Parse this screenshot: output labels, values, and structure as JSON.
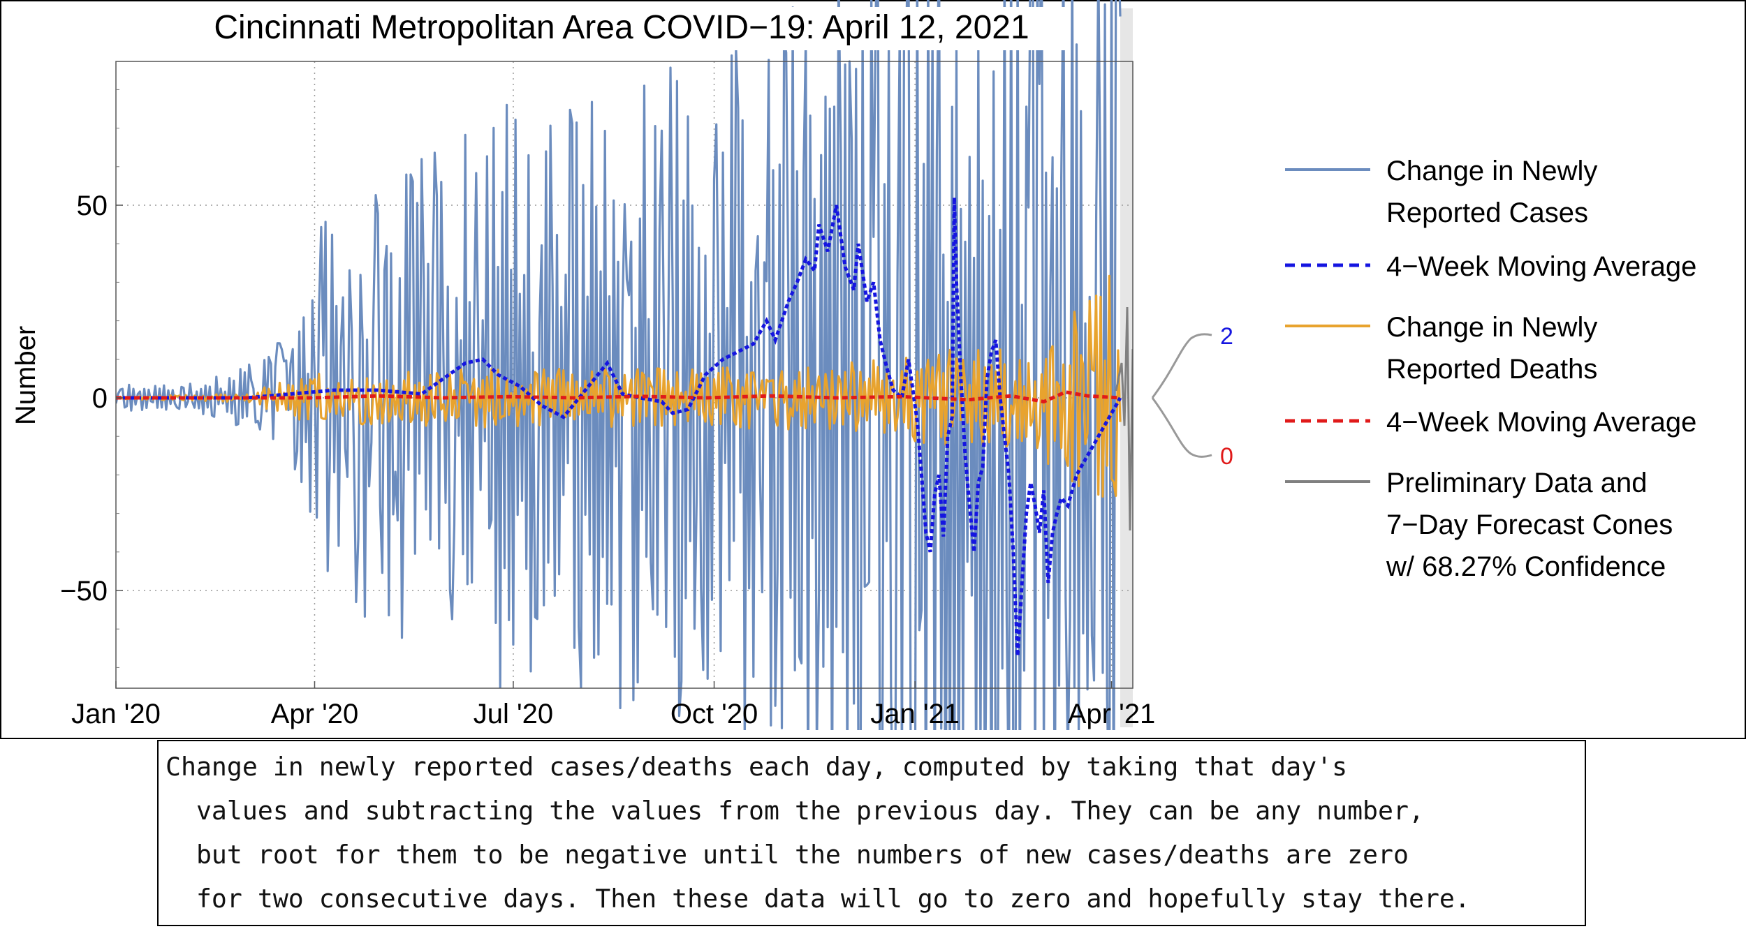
{
  "chart_data": {
    "type": "line",
    "title": "Cincinnati Metropolitan Area COVID−19: April 12, 2021",
    "xlabel": "",
    "ylabel": "Number",
    "x_range": [
      "2020-01-01",
      "2021-04-12"
    ],
    "ylim": [
      -75,
      88
    ],
    "y_ticks": [
      {
        "value": 50,
        "label": "50"
      },
      {
        "value": 0,
        "label": "0"
      },
      {
        "value": -50,
        "label": "−50"
      }
    ],
    "x_ticks": [
      {
        "day": 0,
        "label": "Jan '20"
      },
      {
        "day": 91,
        "label": "Apr '20"
      },
      {
        "day": 182,
        "label": "Jul '20"
      },
      {
        "day": 274,
        "label": "Oct '20"
      },
      {
        "day": 366,
        "label": "Jan '21"
      },
      {
        "day": 456,
        "label": "Apr '21"
      }
    ],
    "preliminary_start_day": 460,
    "gridlines": "dotted",
    "series": [
      {
        "name": "Change in Newly Reported Cases",
        "style": "solid",
        "color": "#6b8cbe",
        "envelope": [
          {
            "day": 0,
            "amp": 3
          },
          {
            "day": 40,
            "amp": 4
          },
          {
            "day": 60,
            "amp": 8
          },
          {
            "day": 80,
            "amp": 15
          },
          {
            "day": 95,
            "amp": 45
          },
          {
            "day": 120,
            "amp": 55
          },
          {
            "day": 150,
            "amp": 60
          },
          {
            "day": 180,
            "amp": 70
          },
          {
            "day": 210,
            "amp": 72
          },
          {
            "day": 240,
            "amp": 75
          },
          {
            "day": 270,
            "amp": 82
          },
          {
            "day": 300,
            "amp": 90
          },
          {
            "day": 330,
            "amp": 110
          },
          {
            "day": 380,
            "amp": 120
          },
          {
            "day": 420,
            "amp": 120
          },
          {
            "day": 460,
            "amp": 110
          }
        ]
      },
      {
        "name": "4−Week Moving Average",
        "style": "dotted",
        "color": "#1515e0",
        "points": [
          [
            0,
            0
          ],
          [
            60,
            0
          ],
          [
            80,
            1
          ],
          [
            100,
            2
          ],
          [
            120,
            2
          ],
          [
            140,
            1
          ],
          [
            150,
            5
          ],
          [
            160,
            9
          ],
          [
            168,
            10
          ],
          [
            175,
            6
          ],
          [
            185,
            3
          ],
          [
            195,
            -2
          ],
          [
            205,
            -5
          ],
          [
            215,
            2
          ],
          [
            225,
            9
          ],
          [
            232,
            1
          ],
          [
            240,
            0
          ],
          [
            250,
            -1
          ],
          [
            255,
            -4
          ],
          [
            262,
            -3
          ],
          [
            270,
            6
          ],
          [
            278,
            10
          ],
          [
            285,
            12
          ],
          [
            292,
            14
          ],
          [
            298,
            20
          ],
          [
            302,
            15
          ],
          [
            308,
            25
          ],
          [
            312,
            30
          ],
          [
            316,
            36
          ],
          [
            320,
            33
          ],
          [
            322,
            45
          ],
          [
            326,
            38
          ],
          [
            330,
            50
          ],
          [
            334,
            34
          ],
          [
            338,
            28
          ],
          [
            340,
            40
          ],
          [
            344,
            25
          ],
          [
            347,
            30
          ],
          [
            350,
            15
          ],
          [
            353,
            8
          ],
          [
            356,
            2
          ],
          [
            360,
            0
          ],
          [
            363,
            10
          ],
          [
            367,
            -6
          ],
          [
            369,
            -20
          ],
          [
            371,
            -35
          ],
          [
            373,
            -40
          ],
          [
            375,
            -25
          ],
          [
            377,
            -20
          ],
          [
            379,
            -36
          ],
          [
            381,
            -10
          ],
          [
            383,
            -5
          ],
          [
            384,
            52
          ],
          [
            385,
            30
          ],
          [
            387,
            5
          ],
          [
            389,
            -15
          ],
          [
            391,
            -28
          ],
          [
            393,
            -40
          ],
          [
            395,
            -22
          ],
          [
            397,
            -18
          ],
          [
            399,
            5
          ],
          [
            401,
            12
          ],
          [
            403,
            15
          ],
          [
            405,
            0
          ],
          [
            407,
            -10
          ],
          [
            409,
            -20
          ],
          [
            411,
            -40
          ],
          [
            413,
            -67
          ],
          [
            415,
            -48
          ],
          [
            417,
            -30
          ],
          [
            419,
            -22
          ],
          [
            421,
            -28
          ],
          [
            423,
            -35
          ],
          [
            425,
            -24
          ],
          [
            427,
            -48
          ],
          [
            429,
            -35
          ],
          [
            431,
            -30
          ],
          [
            433,
            -26
          ],
          [
            436,
            -28
          ],
          [
            440,
            -20
          ],
          [
            445,
            -15
          ],
          [
            450,
            -10
          ],
          [
            455,
            -5
          ],
          [
            460,
            0
          ]
        ]
      },
      {
        "name": "Change in Newly Reported Deaths",
        "style": "solid",
        "color": "#e8a32e",
        "envelope": [
          {
            "day": 0,
            "amp": 0.3
          },
          {
            "day": 60,
            "amp": 1
          },
          {
            "day": 85,
            "amp": 6
          },
          {
            "day": 150,
            "amp": 7
          },
          {
            "day": 200,
            "amp": 7
          },
          {
            "day": 260,
            "amp": 7
          },
          {
            "day": 330,
            "amp": 8
          },
          {
            "day": 390,
            "amp": 12
          },
          {
            "day": 420,
            "amp": 12
          },
          {
            "day": 445,
            "amp": 25
          },
          {
            "day": 460,
            "amp": 32
          }
        ]
      },
      {
        "name": "4−Week Moving Average",
        "style": "dotted",
        "color": "#e01a1a",
        "points": [
          [
            0,
            0
          ],
          [
            60,
            0
          ],
          [
            90,
            0
          ],
          [
            120,
            0.5
          ],
          [
            150,
            0
          ],
          [
            180,
            0.3
          ],
          [
            210,
            0
          ],
          [
            240,
            0.4
          ],
          [
            270,
            0
          ],
          [
            300,
            0.5
          ],
          [
            330,
            0
          ],
          [
            360,
            0.3
          ],
          [
            390,
            -0.5
          ],
          [
            410,
            0.5
          ],
          [
            425,
            -1
          ],
          [
            435,
            1.5
          ],
          [
            445,
            0.5
          ],
          [
            460,
            0
          ]
        ]
      },
      {
        "name": "Preliminary Data and 7−Day Forecast Cones w/ 68.27% Confidence",
        "style": "solid",
        "color": "#808080"
      }
    ],
    "forecast_labels": [
      {
        "value": "2",
        "color": "#1515e0"
      },
      {
        "value": "0",
        "color": "#e01a1a"
      }
    ]
  },
  "legend": {
    "items": [
      {
        "line1": "Change in Newly",
        "line2": "Reported Cases",
        "color": "#6b8cbe",
        "style": "solid"
      },
      {
        "line1": "4−Week Moving Average",
        "line2": "",
        "color": "#1515e0",
        "style": "dashed"
      },
      {
        "line1": "Change in Newly",
        "line2": "Reported Deaths",
        "color": "#e8a32e",
        "style": "solid"
      },
      {
        "line1": "4−Week Moving Average",
        "line2": "",
        "color": "#e01a1a",
        "style": "dashed"
      },
      {
        "line1": "Preliminary Data and",
        "line2": "7−Day Forecast Cones",
        "line3": "w/ 68.27% Confidence",
        "color": "#808080",
        "style": "solid"
      }
    ]
  },
  "caption": {
    "lines": [
      "Change in newly reported cases/deaths each day, computed by taking that day's",
      "  values and subtracting the values from the previous day. They can be any number,",
      "  but root for them to be negative until the numbers of new cases/deaths are zero",
      "  for two consecutive days. Then these data will go to zero and hopefully stay there."
    ]
  }
}
